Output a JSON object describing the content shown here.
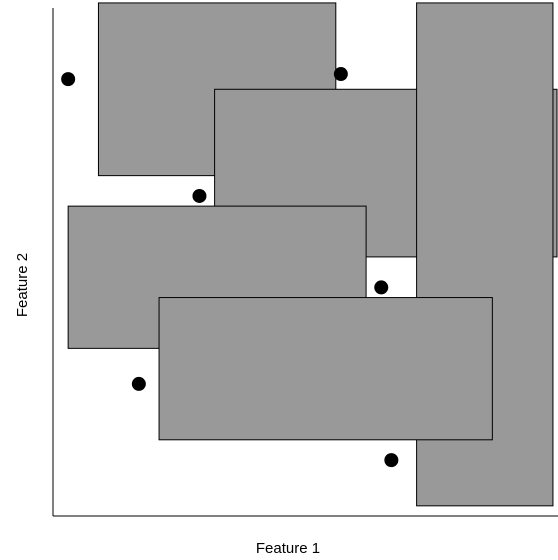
{
  "chart_data": {
    "type": "scatter",
    "title": "",
    "xlabel": "Feature 1",
    "ylabel": "Feature 2",
    "xlim": [
      0,
      100
    ],
    "ylim": [
      0,
      100
    ],
    "grid": false,
    "legend": "none",
    "colors": {
      "rectangle_fill": "#999999",
      "rectangle_edge": "#000000",
      "point": "#000000",
      "axis": "#000000"
    },
    "rectangles": [
      {
        "x0": 9,
        "x1": 56,
        "y0": 67,
        "y1": 101
      },
      {
        "x0": 32,
        "x1": 103,
        "y0": 51,
        "y1": 84
      },
      {
        "x0": 72,
        "x1": 99,
        "y0": 2,
        "y1": 101
      },
      {
        "x0": 3,
        "x1": 62,
        "y0": 33,
        "y1": 61
      },
      {
        "x0": 21,
        "x1": 87,
        "y0": 15,
        "y1": 43
      }
    ],
    "points": [
      {
        "x": 3,
        "y": 86
      },
      {
        "x": 57,
        "y": 87
      },
      {
        "x": 29,
        "y": 63
      },
      {
        "x": 65,
        "y": 45
      },
      {
        "x": 17,
        "y": 26
      },
      {
        "x": 67,
        "y": 11
      }
    ]
  }
}
